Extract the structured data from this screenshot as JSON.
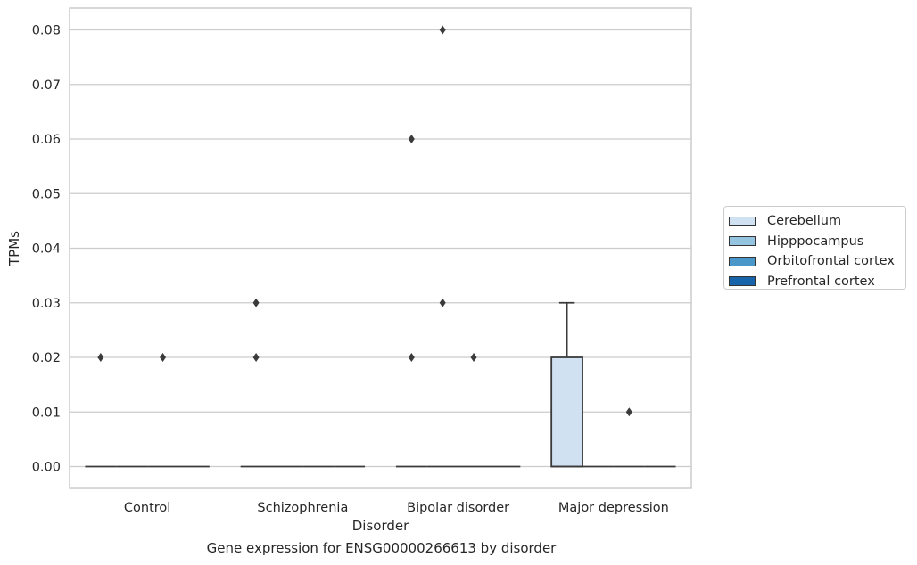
{
  "caption": "Gene expression for ENSG00000266613 by disorder",
  "chart_data": {
    "type": "box",
    "title": "",
    "xlabel": "Disorder",
    "ylabel": "TPMs",
    "ylim": [
      -0.004,
      0.084
    ],
    "yticks": [
      0.0,
      0.01,
      0.02,
      0.03,
      0.04,
      0.05,
      0.06,
      0.07,
      0.08
    ],
    "ytick_labels": [
      "0.00",
      "0.01",
      "0.02",
      "0.03",
      "0.04",
      "0.05",
      "0.06",
      "0.07",
      "0.08"
    ],
    "grid": true,
    "legend_position": "right",
    "categories": [
      "Control",
      "Schizophrenia",
      "Bipolar disorder",
      "Major depression"
    ],
    "series": [
      {
        "name": "Cerebellum",
        "color": "#d0e1f2",
        "boxes": [
          {
            "q1": 0,
            "median": 0,
            "q3": 0,
            "whisker_low": 0,
            "whisker_high": 0,
            "outliers": [
              0.02
            ]
          },
          {
            "q1": 0,
            "median": 0,
            "q3": 0,
            "whisker_low": 0,
            "whisker_high": 0,
            "outliers": [
              0.02,
              0.03
            ]
          },
          {
            "q1": 0,
            "median": 0,
            "q3": 0,
            "whisker_low": 0,
            "whisker_high": 0,
            "outliers": [
              0.02,
              0.06
            ]
          },
          {
            "q1": 0,
            "median": 0,
            "q3": 0.02,
            "whisker_low": 0,
            "whisker_high": 0.03,
            "outliers": []
          }
        ]
      },
      {
        "name": "Hipppocampus",
        "color": "#94c4df",
        "boxes": [
          {
            "q1": 0,
            "median": 0,
            "q3": 0,
            "whisker_low": 0,
            "whisker_high": 0,
            "outliers": []
          },
          {
            "q1": 0,
            "median": 0,
            "q3": 0,
            "whisker_low": 0,
            "whisker_high": 0,
            "outliers": []
          },
          {
            "q1": 0,
            "median": 0,
            "q3": 0,
            "whisker_low": 0,
            "whisker_high": 0,
            "outliers": [
              0.03,
              0.08
            ]
          },
          {
            "q1": 0,
            "median": 0,
            "q3": 0,
            "whisker_low": 0,
            "whisker_high": 0,
            "outliers": []
          }
        ]
      },
      {
        "name": "Orbitofrontal cortex",
        "color": "#4a98c9",
        "boxes": [
          {
            "q1": 0,
            "median": 0,
            "q3": 0,
            "whisker_low": 0,
            "whisker_high": 0,
            "outliers": [
              0.02
            ]
          },
          {
            "q1": 0,
            "median": 0,
            "q3": 0,
            "whisker_low": 0,
            "whisker_high": 0,
            "outliers": []
          },
          {
            "q1": 0,
            "median": 0,
            "q3": 0,
            "whisker_low": 0,
            "whisker_high": 0,
            "outliers": [
              0.02
            ]
          },
          {
            "q1": 0,
            "median": 0,
            "q3": 0,
            "whisker_low": 0,
            "whisker_high": 0,
            "outliers": [
              0.01
            ]
          }
        ]
      },
      {
        "name": "Prefrontal cortex",
        "color": "#1764ab",
        "boxes": [
          {
            "q1": 0,
            "median": 0,
            "q3": 0,
            "whisker_low": 0,
            "whisker_high": 0,
            "outliers": []
          },
          {
            "q1": 0,
            "median": 0,
            "q3": 0,
            "whisker_low": 0,
            "whisker_high": 0,
            "outliers": []
          },
          {
            "q1": 0,
            "median": 0,
            "q3": 0,
            "whisker_low": 0,
            "whisker_high": 0,
            "outliers": []
          },
          {
            "q1": 0,
            "median": 0,
            "q3": 0,
            "whisker_low": 0,
            "whisker_high": 0,
            "outliers": []
          }
        ]
      }
    ]
  }
}
